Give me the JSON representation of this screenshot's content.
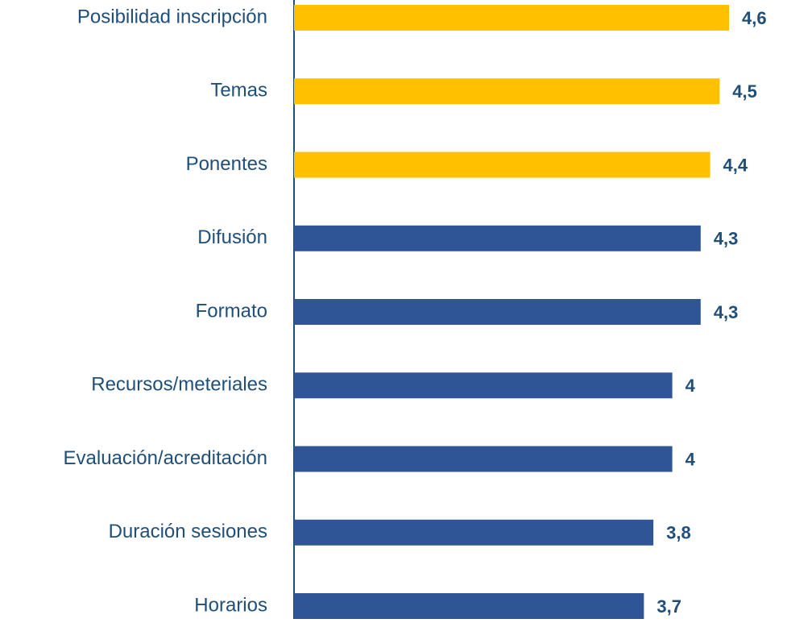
{
  "chart_data": {
    "type": "bar",
    "orientation": "horizontal",
    "categories": [
      "Posibilidad inscripción",
      "Temas",
      "Ponentes",
      "Difusión",
      "Formato",
      "Recursos/meteriales",
      "Evaluación/acreditación",
      "Duración sesiones",
      "Horarios"
    ],
    "values": [
      4.6,
      4.5,
      4.4,
      4.3,
      4.3,
      4,
      4,
      3.8,
      3.7
    ],
    "value_labels": [
      "4,6",
      "4,5",
      "4,4",
      "4,3",
      "4,3",
      "4",
      "4",
      "3,8",
      "3,7"
    ],
    "colors": [
      "#ffc000",
      "#ffc000",
      "#ffc000",
      "#2f5597",
      "#2f5597",
      "#2f5597",
      "#2f5597",
      "#2f5597",
      "#2f5597"
    ],
    "xlim": [
      0,
      5
    ]
  }
}
